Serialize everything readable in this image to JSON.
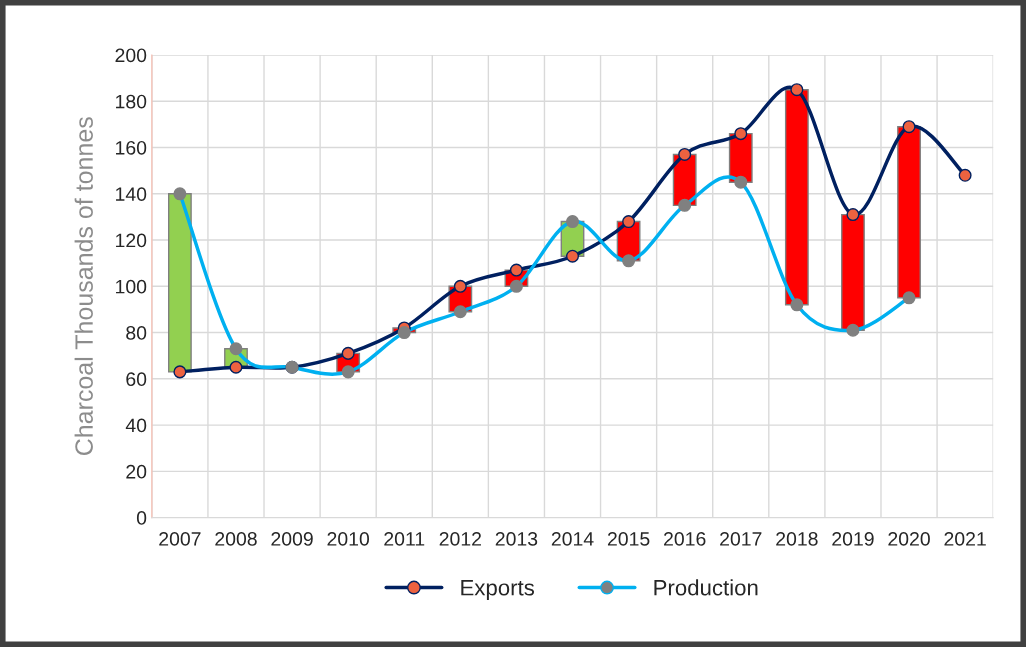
{
  "chart_data": {
    "type": "line",
    "ylabel": "Charcoal Thousands of tonnes",
    "categories": [
      "2007",
      "2008",
      "2009",
      "2010",
      "2011",
      "2012",
      "2013",
      "2014",
      "2015",
      "2016",
      "2017",
      "2018",
      "2019",
      "2020",
      "2021"
    ],
    "series": [
      {
        "type": "bar",
        "base": [
          63,
          65,
          null,
          71,
          82,
          100,
          107,
          113,
          128,
          157,
          166,
          185,
          131,
          169,
          null
        ],
        "values": [
          77,
          8,
          null,
          -8,
          -2,
          -11,
          -7,
          15,
          -17,
          -22,
          -21,
          -93,
          -50,
          -74,
          null
        ],
        "colors": [
          "#92d050",
          "#92d050",
          "#92d050",
          "#ff0000",
          "#ff0000",
          "#ff0000",
          "#ff0000",
          "#92d050",
          "#ff0000",
          "#ff0000",
          "#ff0000",
          "#ff0000",
          "#ff0000",
          "#ff0000",
          "#ff0000"
        ]
      },
      {
        "name": "Exports",
        "color": "#002060",
        "colors": [
          "#ed6240",
          "#ed6240",
          "#ed6240",
          "#ed6240",
          "#ed6240",
          "#ed6240",
          "#ed6240",
          "#ed6240",
          "#ed6240",
          "#ed6240",
          "#ed6240",
          "#ed6240",
          "#ed6240",
          "#ed6240",
          "#ed6240"
        ],
        "values": [
          63,
          65,
          65,
          71,
          82,
          100,
          107,
          113,
          128,
          157,
          166,
          185,
          131,
          169,
          148
        ]
      },
      {
        "name": "Production",
        "color": "#00b0f0",
        "colors": [
          "#808080",
          "#808080",
          "#808080",
          "#808080",
          "#808080",
          "#808080",
          "#808080",
          "#808080",
          "#808080",
          "#808080",
          "#808080",
          "#808080",
          "#808080",
          "#808080",
          "#808080"
        ],
        "values": [
          140,
          73,
          65,
          63,
          80,
          89,
          100,
          128,
          111,
          135,
          145,
          92,
          81,
          95,
          null
        ]
      }
    ],
    "ylim": [
      0,
      200
    ],
    "yticks": [
      0,
      20,
      40,
      60,
      80,
      100,
      120,
      140,
      160,
      180,
      200
    ],
    "grid": true,
    "legend": "bottom",
    "marker": "circle",
    "line_style": "solid"
  }
}
